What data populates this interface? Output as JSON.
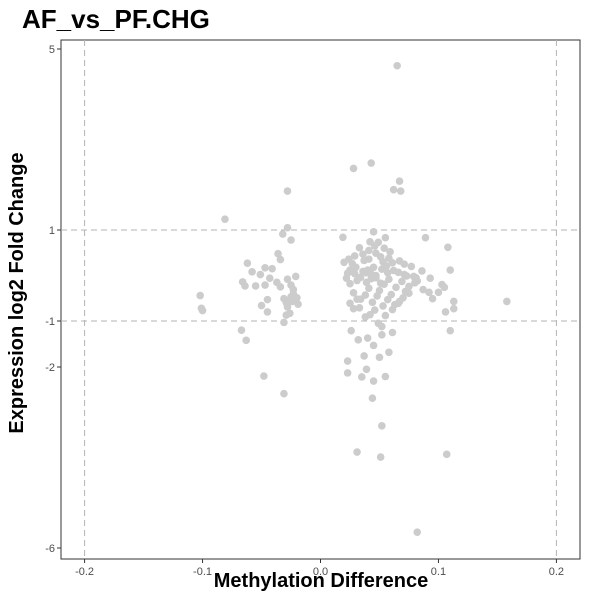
{
  "chart_data": {
    "type": "scatter",
    "title": "AF_vs_PF.CHG",
    "xlabel": "Methylation Difference",
    "ylabel": "Expression log2 Fold Change",
    "xlim": [
      -0.22,
      0.22
    ],
    "ylim": [
      -6,
      5
    ],
    "x_ticks": [
      -0.2,
      -0.1,
      0.0,
      0.1,
      0.2
    ],
    "x_tick_labels": [
      "-0.2",
      "-0.1",
      "0.0",
      "0.1",
      "0.2"
    ],
    "y_ticks": [
      -6,
      -2,
      -1,
      1,
      5
    ],
    "y_tick_labels": [
      "-6",
      "-2",
      "-1",
      "1",
      "5"
    ],
    "threshold_lines": {
      "x": [
        -0.2,
        0.2
      ],
      "y": [
        -1,
        1
      ]
    },
    "grid": false,
    "point_color": "#cccccc",
    "line_color": "#b3b3b3",
    "points": [
      [
        0.065,
        4.63
      ],
      [
        0.028,
        2.36
      ],
      [
        0.043,
        2.48
      ],
      [
        0.067,
        2.08
      ],
      [
        0.062,
        1.89
      ],
      [
        0.068,
        1.86
      ],
      [
        -0.028,
        1.86
      ],
      [
        -0.081,
        1.24
      ],
      [
        -0.028,
        1.05
      ],
      [
        -0.032,
        0.91
      ],
      [
        0.019,
        0.84
      ],
      [
        0.045,
        0.96
      ],
      [
        0.089,
        0.83
      ],
      [
        -0.025,
        0.78
      ],
      [
        -0.036,
        0.48
      ],
      [
        0.041,
        0.36
      ],
      [
        0.053,
        0.3
      ],
      [
        0.04,
        0.12
      ],
      [
        0.057,
        0.06
      ],
      [
        -0.058,
        0.08
      ],
      [
        -0.043,
        -0.06
      ],
      [
        -0.037,
        -0.15
      ],
      [
        -0.055,
        -0.23
      ],
      [
        -0.047,
        -0.21
      ],
      [
        -0.025,
        -0.21
      ],
      [
        -0.021,
        -0.02
      ],
      [
        -0.028,
        -0.08
      ],
      [
        -0.041,
        0.15
      ],
      [
        -0.062,
        0.27
      ],
      [
        -0.034,
        0.35
      ],
      [
        -0.047,
        0.17
      ],
      [
        -0.051,
        0.02
      ],
      [
        -0.066,
        -0.14
      ],
      [
        -0.1,
        -0.77
      ],
      [
        -0.101,
        -0.72
      ],
      [
        -0.102,
        -0.44
      ],
      [
        -0.064,
        -0.23
      ],
      [
        -0.045,
        -0.53
      ],
      [
        -0.031,
        -0.51
      ],
      [
        -0.026,
        -0.57
      ],
      [
        -0.024,
        -0.57
      ],
      [
        -0.029,
        -0.6
      ],
      [
        -0.028,
        -0.69
      ],
      [
        -0.026,
        -0.83
      ],
      [
        -0.031,
        -1.03
      ],
      [
        -0.029,
        -0.87
      ],
      [
        -0.045,
        -0.8
      ],
      [
        -0.05,
        -0.66
      ],
      [
        -0.025,
        -0.47
      ],
      [
        -0.02,
        -0.49
      ],
      [
        -0.023,
        -0.4
      ],
      [
        -0.034,
        -0.25
      ],
      [
        -0.023,
        -0.31
      ],
      [
        -0.067,
        -1.2
      ],
      [
        -0.063,
        -1.42
      ],
      [
        -0.048,
        -2.2
      ],
      [
        -0.031,
        -2.59
      ],
      [
        -0.019,
        -0.63
      ],
      [
        0.02,
        0.29
      ],
      [
        0.024,
        0.36
      ],
      [
        0.03,
        0.18
      ],
      [
        0.036,
        0.47
      ],
      [
        0.041,
        0.55
      ],
      [
        0.046,
        0.65
      ],
      [
        0.049,
        0.73
      ],
      [
        0.054,
        0.6
      ],
      [
        0.058,
        0.38
      ],
      [
        0.061,
        0.28
      ],
      [
        0.066,
        0.07
      ],
      [
        0.071,
        0.02
      ],
      [
        0.082,
        -0.12
      ],
      [
        0.08,
        -0.16
      ],
      [
        0.087,
        -0.31
      ],
      [
        0.092,
        -0.37
      ],
      [
        0.095,
        -0.51
      ],
      [
        0.103,
        -0.2
      ],
      [
        0.108,
        0.62
      ],
      [
        0.11,
        0.12
      ],
      [
        0.113,
        -0.73
      ],
      [
        0.106,
        -0.8
      ],
      [
        0.11,
        -1.21
      ],
      [
        0.158,
        -0.57
      ],
      [
        0.093,
        -0.06
      ],
      [
        0.1,
        -0.37
      ],
      [
        0.022,
        -0.06
      ],
      [
        0.025,
        -0.18
      ],
      [
        0.028,
        -0.38
      ],
      [
        0.031,
        -0.52
      ],
      [
        0.033,
        -0.71
      ],
      [
        0.038,
        -0.91
      ],
      [
        0.042,
        -0.86
      ],
      [
        0.046,
        -0.76
      ],
      [
        0.049,
        -1.05
      ],
      [
        0.052,
        -1.12
      ],
      [
        0.055,
        -0.88
      ],
      [
        0.061,
        -0.75
      ],
      [
        0.066,
        -0.61
      ],
      [
        0.07,
        -0.49
      ],
      [
        0.072,
        -0.35
      ],
      [
        0.075,
        -0.24
      ],
      [
        0.079,
        -0.02
      ],
      [
        0.081,
        -0.05
      ],
      [
        0.023,
        0.05
      ],
      [
        0.025,
        0.12
      ],
      [
        0.027,
        0.26
      ],
      [
        0.029,
        0.04
      ],
      [
        0.031,
        -0.11
      ],
      [
        0.034,
        -0.04
      ],
      [
        0.036,
        0.09
      ],
      [
        0.039,
        -0.15
      ],
      [
        0.041,
        -0.28
      ],
      [
        0.043,
        0.03
      ],
      [
        0.045,
        0.18
      ],
      [
        0.047,
        -0.05
      ],
      [
        0.05,
        -0.33
      ],
      [
        0.052,
        0.14
      ],
      [
        0.054,
        -0.19
      ],
      [
        0.056,
        0.21
      ],
      [
        0.058,
        -0.08
      ],
      [
        0.06,
        -0.42
      ],
      [
        0.062,
        0.11
      ],
      [
        0.064,
        -0.26
      ],
      [
        0.067,
        0.32
      ],
      [
        0.069,
        -0.13
      ],
      [
        0.071,
        0.25
      ],
      [
        0.073,
        -0.01
      ],
      [
        0.025,
        -0.61
      ],
      [
        0.028,
        -0.73
      ],
      [
        0.034,
        -0.52
      ],
      [
        0.038,
        -0.43
      ],
      [
        0.044,
        -0.59
      ],
      [
        0.048,
        -0.45
      ],
      [
        0.053,
        -0.67
      ],
      [
        0.057,
        -0.53
      ],
      [
        0.063,
        -0.64
      ],
      [
        0.067,
        -0.57
      ],
      [
        0.029,
        0.43
      ],
      [
        0.033,
        0.61
      ],
      [
        0.037,
        0.33
      ],
      [
        0.042,
        0.74
      ],
      [
        0.047,
        0.49
      ],
      [
        0.051,
        0.41
      ],
      [
        0.055,
        0.83
      ],
      [
        0.059,
        0.52
      ],
      [
        0.026,
        -1.21
      ],
      [
        0.032,
        -1.41
      ],
      [
        0.04,
        -1.37
      ],
      [
        0.045,
        -1.53
      ],
      [
        0.052,
        -1.3
      ],
      [
        0.061,
        -1.25
      ],
      [
        0.023,
        -1.87
      ],
      [
        0.037,
        -1.76
      ],
      [
        0.05,
        -1.79
      ],
      [
        0.058,
        -1.68
      ],
      [
        0.023,
        -2.13
      ],
      [
        0.035,
        -2.22
      ],
      [
        0.045,
        -2.31
      ],
      [
        0.055,
        -2.21
      ],
      [
        0.039,
        -2.05
      ],
      [
        0.044,
        -2.69
      ],
      [
        0.052,
        -3.3
      ],
      [
        0.031,
        -3.88
      ],
      [
        0.051,
        -3.99
      ],
      [
        0.107,
        -3.93
      ],
      [
        0.082,
        -5.65
      ],
      [
        0.105,
        -0.26
      ],
      [
        0.113,
        -0.57
      ],
      [
        0.086,
        0.1
      ],
      [
        0.077,
        0.2
      ],
      [
        0.075,
        -0.39
      ],
      [
        0.051,
        -0.17
      ],
      [
        0.047,
        0.0
      ],
      [
        0.043,
        -0.07
      ],
      [
        0.039,
        0.06
      ]
    ]
  }
}
